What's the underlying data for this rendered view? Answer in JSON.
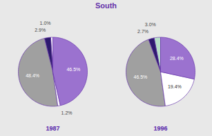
{
  "chart_data": [
    {
      "type": "pie",
      "title": "South",
      "xlabel": "1987",
      "values": [
        1.0,
        2.9,
        48.4,
        1.2,
        46.5
      ],
      "value_labels": [
        "1.0%",
        "2.9%",
        "48.4%",
        "1.2%",
        "46.5%"
      ],
      "colors": [
        "#ffffff",
        "#2e1a6e",
        "#a0a0a0",
        "#ffffff",
        "#9b72cf"
      ],
      "data_labels": true
    },
    {
      "type": "pie",
      "xlabel": "1996",
      "values": [
        3.0,
        2.7,
        46.5,
        19.4,
        28.4
      ],
      "value_labels": [
        "3.0%",
        "2.7%",
        "46.5%",
        "19.4%",
        "28.4%"
      ],
      "colors": [
        "#b8e0c8",
        "#2e1a6e",
        "#a0a0a0",
        "#ffffff",
        "#9b72cf"
      ],
      "data_labels": true
    }
  ]
}
